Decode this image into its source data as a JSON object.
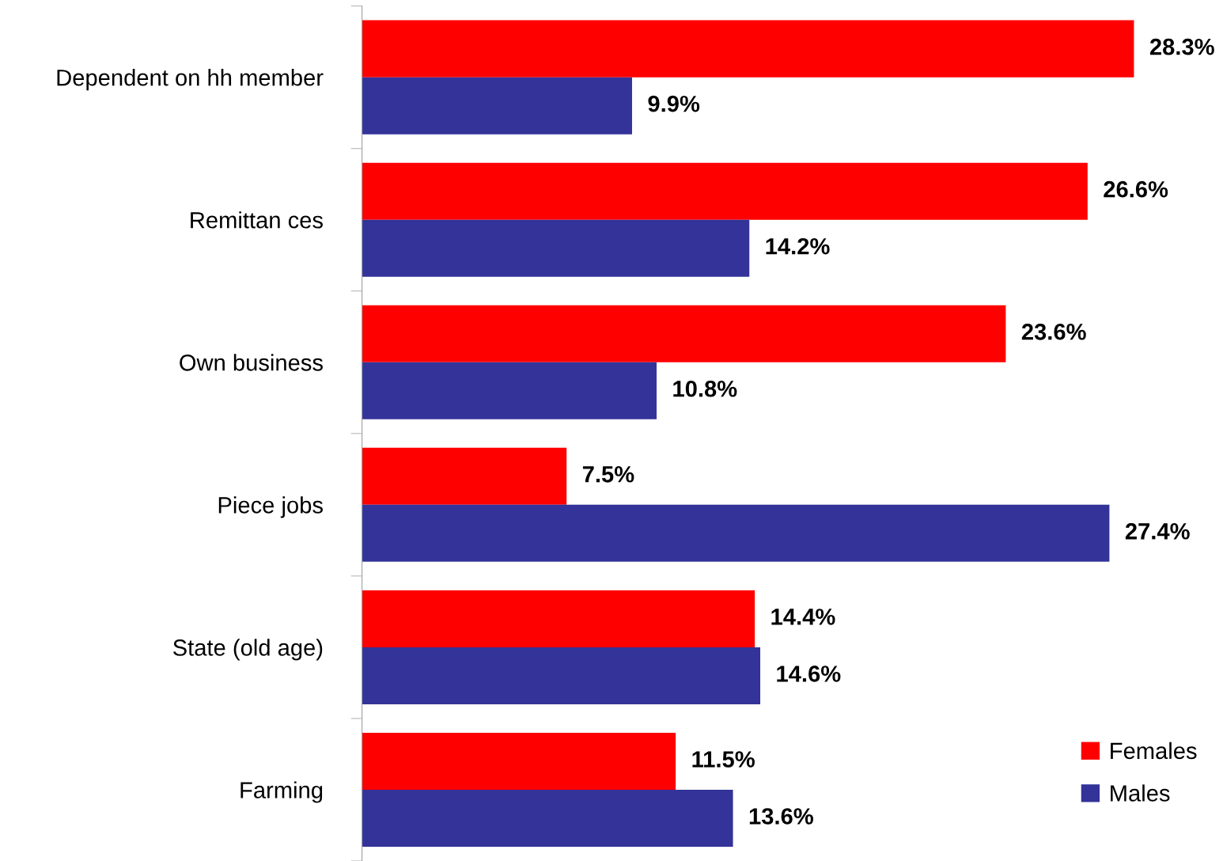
{
  "chart_data": {
    "type": "bar",
    "orientation": "horizontal",
    "categories": [
      "Dependent on hh member",
      "Remittan ces",
      "Own business",
      "Piece jobs",
      "State (old age)",
      "Farming"
    ],
    "series": [
      {
        "name": "Females",
        "color": "#ff0000",
        "values": [
          28.3,
          26.6,
          23.6,
          7.5,
          14.4,
          11.5
        ],
        "value_labels": [
          "28.3%",
          "26.6%",
          "23.6%",
          "7.5%",
          "14.4%",
          "11.5%"
        ]
      },
      {
        "name": "Males",
        "color": "#333399",
        "values": [
          9.9,
          14.2,
          10.8,
          27.4,
          14.6,
          13.6
        ],
        "value_labels": [
          "9.9%",
          "14.2%",
          "10.8%",
          "27.4%",
          "14.6%",
          "13.6%"
        ]
      }
    ],
    "legend": "bottom right",
    "tick_labels": "y"
  }
}
